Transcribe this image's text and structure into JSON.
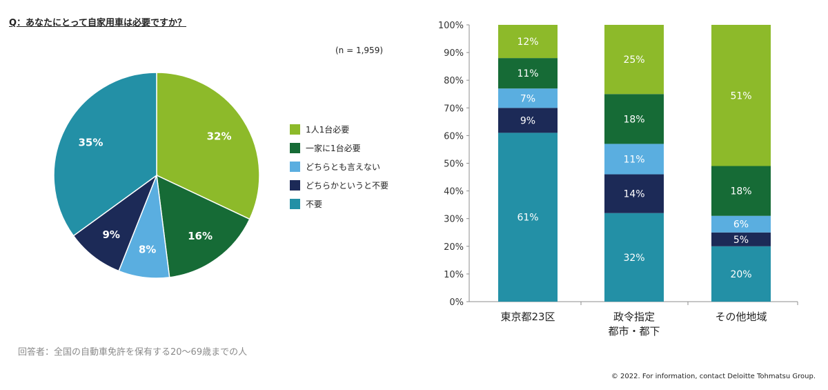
{
  "question": "Q：あなたにとって自家用車は必要ですか？",
  "sample_size": "(n = 1,959)",
  "respondents_note": "回答者：全国の自動車免許を保有する20～69歳までの人",
  "copyright": "© 2022. For information, contact Deloitte Tohmatsu Group.",
  "colors": {
    "one_per_person": "#8dba2a",
    "one_per_family": "#166b36",
    "cannot_say": "#5aaee0",
    "somewhat_unneeded": "#1c2a57",
    "unneeded": "#2390a6"
  },
  "chart_data": [
    {
      "type": "pie",
      "slices": [
        {
          "name": "1人1台必要",
          "value": 32,
          "label": "32%",
          "color": "#8dba2a"
        },
        {
          "name": "一家に1台必要",
          "value": 16,
          "label": "16%",
          "color": "#166b36"
        },
        {
          "name": "どちらとも言えない",
          "value": 8,
          "label": "8%",
          "color": "#5aaee0"
        },
        {
          "name": "どちらかというと不要",
          "value": 9,
          "label": "9%",
          "color": "#1c2a57"
        },
        {
          "name": "不要",
          "value": 35,
          "label": "35%",
          "color": "#2390a6"
        }
      ],
      "legend": [
        "1人1台必要",
        "一家に1台必要",
        "どちらとも言えない",
        "どちらかというと不要",
        "不要"
      ],
      "legend_position": "right"
    },
    {
      "type": "bar",
      "stacked": true,
      "categories": [
        "東京都23区",
        "政令指定\n都市・都下",
        "その他地域"
      ],
      "series": [
        {
          "name": "不要",
          "values": [
            61,
            32,
            20
          ],
          "color": "#2390a6"
        },
        {
          "name": "どちらかというと不要",
          "values": [
            9,
            14,
            5
          ],
          "color": "#1c2a57"
        },
        {
          "name": "どちらとも言えない",
          "values": [
            7,
            11,
            6
          ],
          "color": "#5aaee0"
        },
        {
          "name": "一家に1台必要",
          "values": [
            11,
            18,
            18
          ],
          "color": "#166b36"
        },
        {
          "name": "1人1台必要",
          "values": [
            12,
            25,
            51
          ],
          "color": "#8dba2a"
        }
      ],
      "ylim": [
        0,
        100
      ],
      "yticks": [
        "0%",
        "10%",
        "20%",
        "30%",
        "40%",
        "50%",
        "60%",
        "70%",
        "80%",
        "90%",
        "100%"
      ],
      "grid": false
    }
  ]
}
